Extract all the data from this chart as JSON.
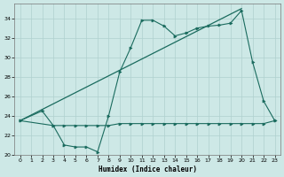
{
  "xlabel": "Humidex (Indice chaleur)",
  "xlim": [
    -0.5,
    23.5
  ],
  "ylim": [
    20,
    35.5
  ],
  "bg_color": "#cde8e6",
  "grid_color": "#afd0ce",
  "line_color": "#1a6b5e",
  "yticks": [
    20,
    22,
    24,
    26,
    28,
    30,
    32,
    34
  ],
  "xticks": [
    0,
    1,
    2,
    3,
    4,
    5,
    6,
    7,
    8,
    9,
    10,
    11,
    12,
    13,
    14,
    15,
    16,
    17,
    18,
    19,
    20,
    21,
    22,
    23
  ],
  "line_wavy_x": [
    0,
    2,
    3,
    4,
    5,
    6,
    7,
    8,
    9,
    10,
    11,
    12,
    13,
    14,
    15,
    16,
    17,
    18,
    19,
    20,
    21,
    22,
    23
  ],
  "line_wavy_y": [
    23.5,
    24.5,
    23.0,
    21.0,
    20.8,
    20.8,
    20.3,
    24.0,
    28.5,
    31.0,
    33.8,
    33.8,
    33.2,
    32.2,
    32.5,
    33.0,
    33.2,
    33.3,
    33.5,
    34.8,
    29.5,
    25.5,
    23.5
  ],
  "line_flat_x": [
    0,
    3,
    4,
    5,
    6,
    7,
    8,
    9,
    10,
    11,
    12,
    13,
    14,
    15,
    16,
    17,
    18,
    19,
    20,
    21,
    22,
    23
  ],
  "line_flat_y": [
    23.5,
    23.0,
    23.0,
    23.0,
    23.0,
    23.0,
    23.0,
    23.2,
    23.2,
    23.2,
    23.2,
    23.2,
    23.2,
    23.2,
    23.2,
    23.2,
    23.2,
    23.2,
    23.2,
    23.2,
    23.2,
    23.5
  ],
  "line_trend_x": [
    0,
    20
  ],
  "line_trend_y": [
    23.5,
    35.0
  ]
}
